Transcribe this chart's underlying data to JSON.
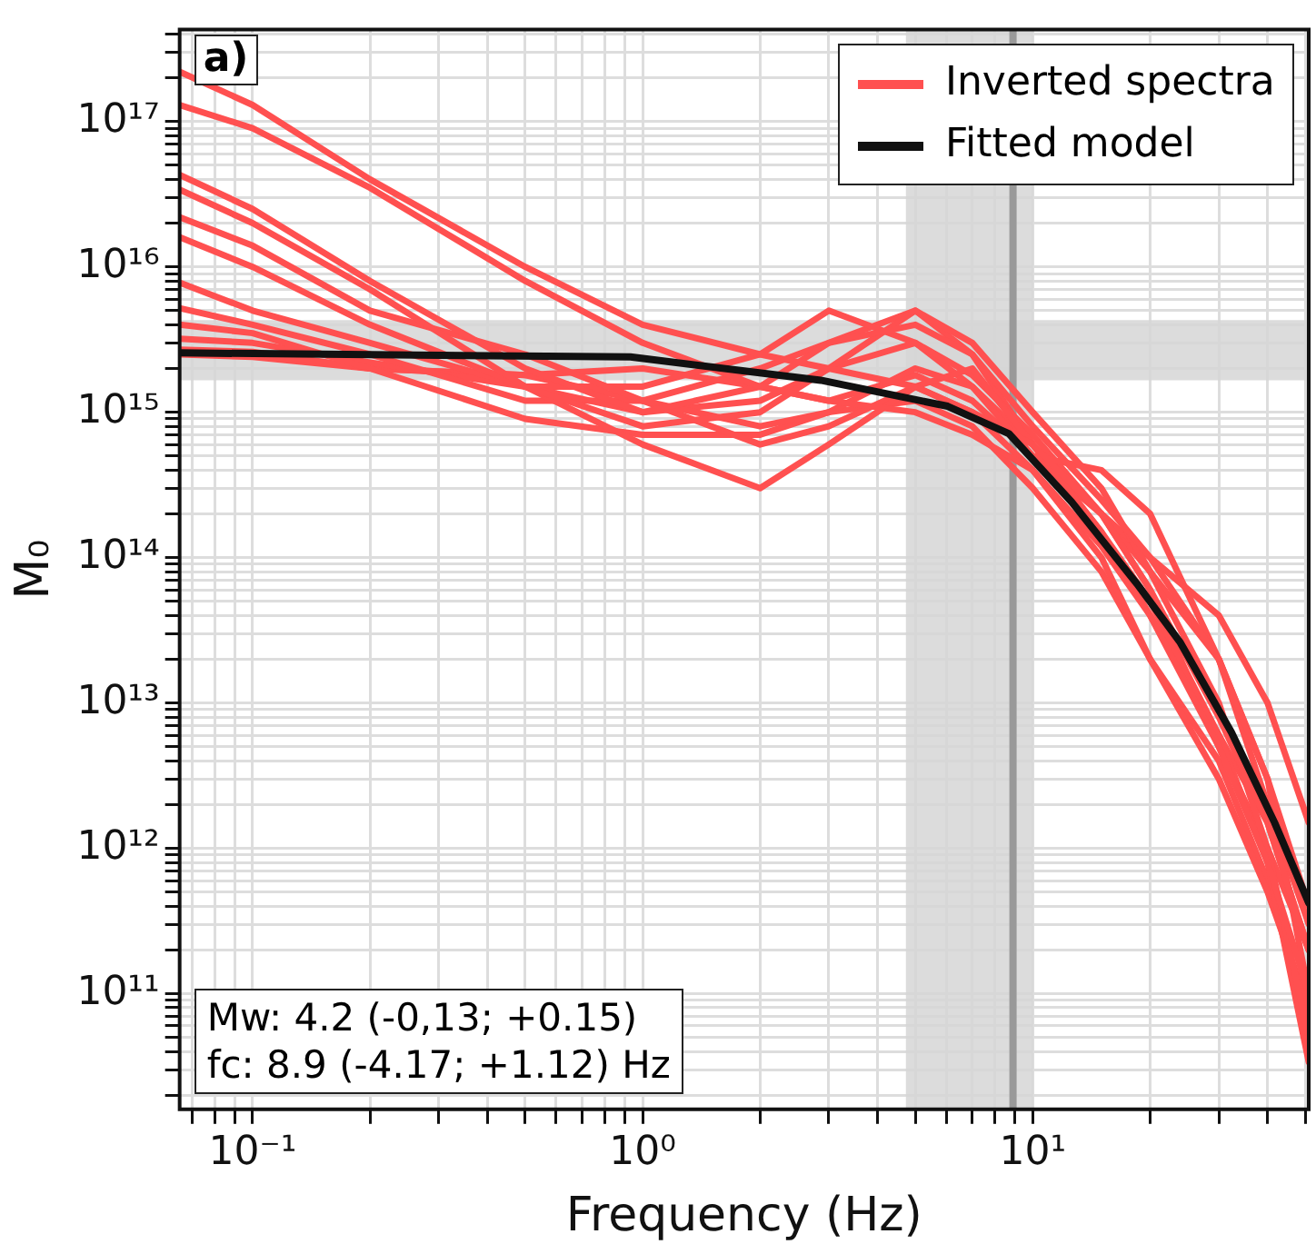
{
  "chart_data": {
    "type": "line",
    "xlabel": "Frequency (Hz)",
    "ylabel": "M₀",
    "log": "xy",
    "grid": true,
    "legend": "top right",
    "x": [
      0.065,
      0.1,
      0.2,
      0.5,
      1,
      2,
      3,
      5,
      7,
      10,
      15,
      20,
      30,
      40,
      51
    ],
    "xlim": [
      0.065,
      51
    ],
    "ylim": [
      16000000000.0,
      4.3e+17
    ],
    "xticks": [
      {
        "value": 0.07,
        "label": null
      },
      {
        "value": 0.08,
        "label": null
      },
      {
        "value": 0.09,
        "label": null
      },
      {
        "value": 0.1,
        "label": "10⁻¹"
      },
      {
        "value": 0.2,
        "label": null
      },
      {
        "value": 0.3,
        "label": null
      },
      {
        "value": 0.4,
        "label": null
      },
      {
        "value": 0.5,
        "label": null
      },
      {
        "value": 0.6,
        "label": null
      },
      {
        "value": 0.7,
        "label": null
      },
      {
        "value": 0.8,
        "label": null
      },
      {
        "value": 0.9,
        "label": null
      },
      {
        "value": 1,
        "label": "10⁰"
      },
      {
        "value": 2,
        "label": null
      },
      {
        "value": 3,
        "label": null
      },
      {
        "value": 4,
        "label": null
      },
      {
        "value": 5,
        "label": null
      },
      {
        "value": 6,
        "label": null
      },
      {
        "value": 7,
        "label": null
      },
      {
        "value": 8,
        "label": null
      },
      {
        "value": 9,
        "label": null
      },
      {
        "value": 10,
        "label": "10¹"
      },
      {
        "value": 20,
        "label": null
      },
      {
        "value": 30,
        "label": null
      },
      {
        "value": 40,
        "label": null
      },
      {
        "value": 50,
        "label": null
      }
    ],
    "yticks": [
      {
        "value": 20000000000.0,
        "label": null
      },
      {
        "value": 30000000000.0,
        "label": null
      },
      {
        "value": 40000000000.0,
        "label": null
      },
      {
        "value": 50000000000.0,
        "label": null
      },
      {
        "value": 60000000000.0,
        "label": null
      },
      {
        "value": 70000000000.0,
        "label": null
      },
      {
        "value": 80000000000.0,
        "label": null
      },
      {
        "value": 90000000000.0,
        "label": null
      },
      {
        "value": 100000000000.0,
        "label": "10¹¹"
      },
      {
        "value": 200000000000.0,
        "label": null
      },
      {
        "value": 300000000000.0,
        "label": null
      },
      {
        "value": 400000000000.0,
        "label": null
      },
      {
        "value": 500000000000.0,
        "label": null
      },
      {
        "value": 600000000000.0,
        "label": null
      },
      {
        "value": 700000000000.0,
        "label": null
      },
      {
        "value": 800000000000.0,
        "label": null
      },
      {
        "value": 900000000000.0,
        "label": null
      },
      {
        "value": 1000000000000.0,
        "label": "10¹²"
      },
      {
        "value": 2000000000000.0,
        "label": null
      },
      {
        "value": 3000000000000.0,
        "label": null
      },
      {
        "value": 4000000000000.0,
        "label": null
      },
      {
        "value": 5000000000000.0,
        "label": null
      },
      {
        "value": 6000000000000.0,
        "label": null
      },
      {
        "value": 7000000000000.0,
        "label": null
      },
      {
        "value": 8000000000000.0,
        "label": null
      },
      {
        "value": 9000000000000.0,
        "label": null
      },
      {
        "value": 10000000000000.0,
        "label": "10¹³"
      },
      {
        "value": 20000000000000.0,
        "label": null
      },
      {
        "value": 30000000000000.0,
        "label": null
      },
      {
        "value": 40000000000000.0,
        "label": null
      },
      {
        "value": 50000000000000.0,
        "label": null
      },
      {
        "value": 60000000000000.0,
        "label": null
      },
      {
        "value": 70000000000000.0,
        "label": null
      },
      {
        "value": 80000000000000.0,
        "label": null
      },
      {
        "value": 90000000000000.0,
        "label": null
      },
      {
        "value": 100000000000000.0,
        "label": "10¹⁴"
      },
      {
        "value": 200000000000000.0,
        "label": null
      },
      {
        "value": 300000000000000.0,
        "label": null
      },
      {
        "value": 400000000000000.0,
        "label": null
      },
      {
        "value": 500000000000000.0,
        "label": null
      },
      {
        "value": 600000000000000.0,
        "label": null
      },
      {
        "value": 700000000000000.0,
        "label": null
      },
      {
        "value": 800000000000000.0,
        "label": null
      },
      {
        "value": 900000000000000.0,
        "label": null
      },
      {
        "value": 1000000000000000.0,
        "label": "10¹⁵"
      },
      {
        "value": 2000000000000000.0,
        "label": null
      },
      {
        "value": 3000000000000000.0,
        "label": null
      },
      {
        "value": 4000000000000000.0,
        "label": null
      },
      {
        "value": 5000000000000000.0,
        "label": null
      },
      {
        "value": 6000000000000000.0,
        "label": null
      },
      {
        "value": 7000000000000000.0,
        "label": null
      },
      {
        "value": 8000000000000000.0,
        "label": null
      },
      {
        "value": 9000000000000000.0,
        "label": null
      },
      {
        "value": 1e+16,
        "label": "10¹⁶"
      },
      {
        "value": 2e+16,
        "label": null
      },
      {
        "value": 3e+16,
        "label": null
      },
      {
        "value": 4e+16,
        "label": null
      },
      {
        "value": 5e+16,
        "label": null
      },
      {
        "value": 6e+16,
        "label": null
      },
      {
        "value": 7e+16,
        "label": null
      },
      {
        "value": 8e+16,
        "label": null
      },
      {
        "value": 9e+16,
        "label": null
      },
      {
        "value": 1e+17,
        "label": "10¹⁷"
      },
      {
        "value": 2e+17,
        "label": null
      },
      {
        "value": 3e+17,
        "label": null
      },
      {
        "value": 4e+17,
        "label": null
      }
    ],
    "bands": [
      {
        "axis": "x",
        "from": 4.73,
        "to": 10.02,
        "color": "#d6d6d6"
      },
      {
        "axis": "y",
        "from": 1660000000000000.0,
        "to": 4300000000000000.0,
        "color": "#d6d6d6"
      }
    ],
    "ref_lines": [
      {
        "axis": "x",
        "value": 8.9,
        "color": "#999999"
      }
    ],
    "annotations": [
      "a)",
      "Mw: 4.2 (-0,13; +0.15)",
      "fc: 8.9 (-4.17; +1.12) Hz"
    ],
    "series": [
      {
        "name": "Inverted spectra",
        "color": "#ff5050",
        "values": [
          2.2e+17,
          1.3e+17,
          4e+16,
          1e+16,
          4000000000000000.0,
          2500000000000000.0,
          2000000000000000.0,
          1500000000000000.0,
          1000000000000000.0,
          600000000000000.0,
          200000000000000.0,
          60000000000000.0,
          8000000000000.0,
          1500000000000.0,
          200000000000.0
        ]
      },
      {
        "color": "#ff5050",
        "values": [
          1.3e+17,
          9e+16,
          3.5e+16,
          8000000000000000.0,
          3000000000000000.0,
          1500000000000000.0,
          1200000000000000.0,
          1000000000000000.0,
          700000000000000.0,
          400000000000000.0,
          120000000000000.0,
          40000000000000.0,
          5000000000000.0,
          800000000000.0,
          100000000000.0
        ]
      },
      {
        "color": "#ff5050",
        "values": [
          4.3e+16,
          2.5e+16,
          8000000000000000.0,
          2000000000000000.0,
          1000000000000000.0,
          1500000000000000.0,
          3000000000000000.0,
          4000000000000000.0,
          2500000000000000.0,
          800000000000000.0,
          250000000000000.0,
          100000000000000.0,
          20000000000000.0,
          3000000000000.0,
          100000000000.0
        ]
      },
      {
        "color": "#ff5050",
        "values": [
          3.4e+16,
          2e+16,
          7000000000000000.0,
          1500000000000000.0,
          800000000000000.0,
          1000000000000000.0,
          2000000000000000.0,
          5000000000000000.0,
          3000000000000000.0,
          1000000000000000.0,
          300000000000000.0,
          80000000000000.0,
          10000000000000.0,
          1000000000000.0,
          50000000000.0
        ]
      },
      {
        "color": "#ff5050",
        "values": [
          2.2e+16,
          1.4e+16,
          5000000000000000.0,
          2500000000000000.0,
          1200000000000000.0,
          800000000000000.0,
          1000000000000000.0,
          2000000000000000.0,
          1500000000000000.0,
          500000000000000.0,
          400000000000000.0,
          200000000000000.0,
          20000000000000.0,
          2000000000000.0,
          300000000000.0
        ]
      },
      {
        "color": "#ff5050",
        "values": [
          1.6e+16,
          1e+16,
          4000000000000000.0,
          1500000000000000.0,
          600000000000000.0,
          300000000000000.0,
          600000000000000.0,
          1500000000000000.0,
          2000000000000000.0,
          600000000000000.0,
          150000000000000.0,
          50000000000000.0,
          6000000000000.0,
          800000000000.0,
          34000000000.0
        ]
      },
      {
        "color": "#ff5050",
        "values": [
          7800000000000000.0,
          5000000000000000.0,
          3000000000000000.0,
          1500000000000000.0,
          1000000000000000.0,
          1200000000000000.0,
          2000000000000000.0,
          3000000000000000.0,
          1800000000000000.0,
          700000000000000.0,
          200000000000000.0,
          60000000000000.0,
          5000000000000.0,
          1000000000000.0,
          200000000000.0
        ]
      },
      {
        "color": "#ff5050",
        "values": [
          5200000000000000.0,
          4000000000000000.0,
          2500000000000000.0,
          1200000000000000.0,
          1200000000000000.0,
          600000000000000.0,
          800000000000000.0,
          1500000000000000.0,
          1000000000000000.0,
          400000000000000.0,
          100000000000000.0,
          20000000000000.0,
          3000000000000.0,
          500000000000.0,
          80000000000.0
        ]
      },
      {
        "color": "#ff5050",
        "values": [
          4000000000000000.0,
          3500000000000000.0,
          2000000000000000.0,
          900000000000000.0,
          700000000000000.0,
          700000000000000.0,
          1000000000000000.0,
          1200000000000000.0,
          800000000000000.0,
          300000000000000.0,
          80000000000000.0,
          20000000000000.0,
          4000000000000.0,
          600000000000.0,
          60000000000.0
        ]
      },
      {
        "color": "#ff5050",
        "values": [
          3200000000000000.0,
          3000000000000000.0,
          2200000000000000.0,
          1500000000000000.0,
          1500000000000000.0,
          2500000000000000.0,
          5000000000000000.0,
          3000000000000000.0,
          1500000000000000.0,
          600000000000000.0,
          200000000000000.0,
          100000000000000.0,
          40000000000000.0,
          10000000000000.0,
          1500000000000.0
        ]
      },
      {
        "color": "#ff5050",
        "values": [
          2700000000000000.0,
          2600000000000000.0,
          2000000000000000.0,
          1800000000000000.0,
          1200000000000000.0,
          2000000000000000.0,
          3000000000000000.0,
          5000000000000000.0,
          2500000000000000.0,
          600000000000000.0,
          150000000000000.0,
          40000000000000.0,
          6000000000000.0,
          1500000000000.0,
          200000000000.0
        ]
      },
      {
        "color": "#ff5050",
        "values": [
          2500000000000000.0,
          2400000000000000.0,
          2000000000000000.0,
          1800000000000000.0,
          2000000000000000.0,
          1500000000000000.0,
          1200000000000000.0,
          1800000000000000.0,
          1200000000000000.0,
          500000000000000.0,
          200000000000000.0,
          80000000000000.0,
          20000000000000.0,
          3000000000000.0,
          400000000000.0
        ]
      },
      {
        "name": "Fitted model",
        "color": "#111111",
        "x": [
          0.065,
          0.93,
          2.86,
          6.05,
          8.7,
          12.6,
          18.5,
          23.9,
          32.3,
          41.7,
          51
        ],
        "values": [
          2560000000000000.0,
          2400000000000000.0,
          1660000000000000.0,
          1100000000000000.0,
          710000000000000.0,
          240000000000000.0,
          66000000000000.0,
          26000000000000.0,
          6300000000000.0,
          1500000000000.0,
          420000000000.0
        ]
      }
    ]
  }
}
